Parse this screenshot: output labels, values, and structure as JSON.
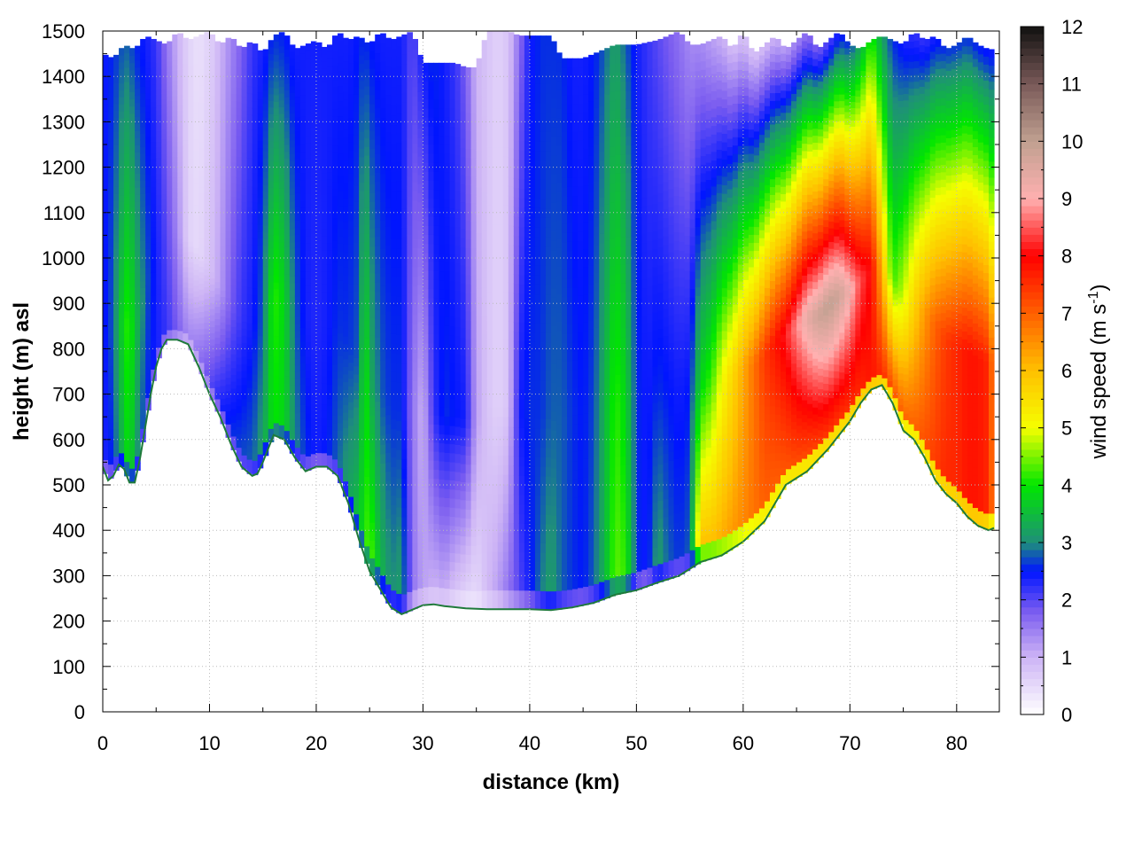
{
  "chart_data": {
    "type": "heatmap",
    "title": "",
    "xlabel": "distance (km)",
    "ylabel": "height (m) asl",
    "colorbar_label": "wind speed (m s",
    "colorbar_label_sup": "-1",
    "colorbar_label_end": ")",
    "xlim": [
      0,
      84
    ],
    "ylim": [
      0,
      1500
    ],
    "zlim": [
      0,
      12
    ],
    "x_ticks": [
      0,
      10,
      20,
      30,
      40,
      50,
      60,
      70,
      80
    ],
    "y_ticks": [
      0,
      100,
      200,
      300,
      400,
      500,
      600,
      700,
      800,
      900,
      1000,
      1100,
      1200,
      1300,
      1400,
      1500
    ],
    "z_ticks": [
      0,
      1,
      2,
      3,
      4,
      5,
      6,
      7,
      8,
      9,
      10,
      11,
      12
    ],
    "grid": true,
    "colormap": [
      {
        "value": 0,
        "color": "#ffffff"
      },
      {
        "value": 1,
        "color": "#cdb4f5"
      },
      {
        "value": 1.8,
        "color": "#7a5cf0"
      },
      {
        "value": 2.5,
        "color": "#0015ff"
      },
      {
        "value": 3,
        "color": "#1f8f7a"
      },
      {
        "value": 4,
        "color": "#00e600"
      },
      {
        "value": 5,
        "color": "#f5ff00"
      },
      {
        "value": 6,
        "color": "#ffc000"
      },
      {
        "value": 7,
        "color": "#ff6000"
      },
      {
        "value": 8,
        "color": "#ff0000"
      },
      {
        "value": 9,
        "color": "#ffb0b0"
      },
      {
        "value": 10,
        "color": "#c0a090"
      },
      {
        "value": 11,
        "color": "#7a5a58"
      },
      {
        "value": 12,
        "color": "#111111"
      }
    ],
    "terrain": {
      "distance_km": [
        0,
        0.5,
        1,
        1.5,
        2,
        2.5,
        3,
        3.5,
        4,
        4.5,
        5,
        5.5,
        6,
        6.5,
        7,
        8,
        9,
        10,
        11,
        12,
        13,
        14,
        14.5,
        15,
        16,
        17,
        18,
        19,
        20,
        21,
        22,
        23,
        24,
        25,
        26,
        27,
        28,
        29,
        30,
        31,
        32,
        34,
        36,
        38,
        40,
        42,
        44,
        46,
        48,
        50,
        52,
        54,
        56,
        58,
        60,
        62,
        64,
        66,
        68,
        70,
        71,
        72,
        73,
        74,
        75,
        76,
        77,
        78,
        79,
        80,
        81,
        82,
        83,
        83.5
      ],
      "height_m": [
        540,
        510,
        520,
        545,
        535,
        505,
        505,
        560,
        630,
        700,
        760,
        800,
        820,
        820,
        820,
        810,
        760,
        700,
        650,
        590,
        540,
        520,
        525,
        550,
        610,
        600,
        560,
        530,
        540,
        540,
        520,
        460,
        380,
        310,
        270,
        230,
        215,
        225,
        235,
        237,
        233,
        228,
        226,
        226,
        226,
        224,
        230,
        240,
        258,
        268,
        285,
        300,
        330,
        345,
        375,
        420,
        500,
        530,
        580,
        640,
        680,
        710,
        720,
        680,
        620,
        600,
        560,
        510,
        480,
        460,
        430,
        410,
        400,
        405
      ]
    },
    "top_boundary": {
      "distance_km": [
        0,
        1,
        2,
        3,
        4,
        5,
        6,
        7,
        8,
        9,
        10,
        11,
        12,
        13,
        14,
        15,
        16,
        17,
        18,
        19,
        20,
        21,
        22,
        23,
        24,
        25,
        26,
        27,
        28,
        29,
        30,
        31,
        32,
        33,
        34,
        35,
        36,
        37,
        38,
        39,
        40,
        41,
        42,
        43,
        44,
        45,
        46,
        47,
        48,
        49,
        50,
        51,
        52,
        53,
        54,
        55,
        56,
        57,
        58,
        59,
        60,
        61,
        62,
        63,
        64,
        65,
        66,
        67,
        68,
        69,
        70,
        71,
        72,
        73,
        74,
        75,
        76,
        77,
        78,
        79,
        80,
        81,
        82,
        83,
        83.5
      ],
      "height_m": [
        1450,
        1440,
        1470,
        1460,
        1490,
        1480,
        1470,
        1500,
        1480,
        1490,
        1500,
        1470,
        1490,
        1460,
        1480,
        1450,
        1490,
        1500,
        1460,
        1470,
        1480,
        1460,
        1500,
        1480,
        1490,
        1470,
        1500,
        1480,
        1490,
        1500,
        1430,
        1430,
        1430,
        1430,
        1420,
        1420,
        1500,
        1500,
        1500,
        1490,
        1490,
        1490,
        1490,
        1440,
        1440,
        1440,
        1450,
        1460,
        1470,
        1470,
        1470,
        1475,
        1480,
        1490,
        1500,
        1470,
        1470,
        1480,
        1490,
        1460,
        1500,
        1450,
        1470,
        1490,
        1460,
        1480,
        1500,
        1460,
        1480,
        1500,
        1470,
        1460,
        1480,
        1490,
        1480,
        1470,
        1500,
        1480,
        1490,
        1460,
        1470,
        1490,
        1470,
        1460,
        1460
      ]
    },
    "field_columns": {
      "note": "",
      "distance_km": [
        0,
        1,
        2,
        2.5,
        3,
        4,
        5,
        6,
        7,
        8,
        9,
        10,
        11,
        12,
        13,
        14,
        15,
        16,
        17,
        18,
        19,
        20,
        21,
        22,
        23,
        24,
        24.5,
        25,
        26,
        27,
        28,
        29,
        30,
        31,
        32,
        33,
        34,
        35,
        36,
        37,
        38,
        39,
        40,
        41,
        42,
        43,
        44,
        45,
        46,
        47,
        48,
        49,
        50,
        51,
        52,
        53,
        54,
        55,
        56,
        57,
        58,
        59,
        60,
        61,
        62,
        63,
        64,
        65,
        66,
        67,
        68,
        69,
        70,
        71,
        72,
        73,
        74,
        75,
        76,
        77,
        78,
        79,
        80,
        81,
        82,
        83,
        83.5
      ],
      "near_ground_speed": [
        2.3,
        2.6,
        3.6,
        4.0,
        3.2,
        2.6,
        2.4,
        2.2,
        1.8,
        1.4,
        1.6,
        2.0,
        2.4,
        2.6,
        2.7,
        2.8,
        3.2,
        4.0,
        3.8,
        3.0,
        2.6,
        2.4,
        2.5,
        2.8,
        3.2,
        3.6,
        4.0,
        4.5,
        3.5,
        3.0,
        3.2,
        1.6,
        1.2,
        1.0,
        1.1,
        0.8,
        0.6,
        0.5,
        0.9,
        1.2,
        1.6,
        2.0,
        2.4,
        2.9,
        3.2,
        2.8,
        2.6,
        2.5,
        2.8,
        3.4,
        4.4,
        4.2,
        2.6,
        2.4,
        3.2,
        2.8,
        2.6,
        2.8,
        6.0,
        6.0,
        6.2,
        6.4,
        6.6,
        6.8,
        7.0,
        7.0,
        7.1,
        7.2,
        7.2,
        7.3,
        7.4,
        7.4,
        7.5,
        7.6,
        7.8,
        7.6,
        7.2,
        7.0,
        7.0,
        7.2,
        7.4,
        7.6,
        7.6,
        7.8,
        7.8,
        7.6,
        6.5
      ],
      "core_speed": [
        2.4,
        2.8,
        4.0,
        4.2,
        3.6,
        2.8,
        2.4,
        2.0,
        1.4,
        0.6,
        0.5,
        0.8,
        1.2,
        1.8,
        2.2,
        2.4,
        2.8,
        4.2,
        3.8,
        2.8,
        2.4,
        2.3,
        2.4,
        2.6,
        2.6,
        2.8,
        4.2,
        3.4,
        2.8,
        2.6,
        2.6,
        1.6,
        1.0,
        2.2,
        2.6,
        2.5,
        2.4,
        1.2,
        0.8,
        0.6,
        0.8,
        2.4,
        2.6,
        2.6,
        2.8,
        2.8,
        2.6,
        2.5,
        2.7,
        3.4,
        4.2,
        3.8,
        2.6,
        2.4,
        2.6,
        2.5,
        2.4,
        2.5,
        3.8,
        4.2,
        5.0,
        5.6,
        6.2,
        6.8,
        7.4,
        7.8,
        8.2,
        8.8,
        9.4,
        9.8,
        10.0,
        9.8,
        9.2,
        8.4,
        8.0,
        6.0,
        4.2,
        4.8,
        5.6,
        6.4,
        7.0,
        7.4,
        7.6,
        7.8,
        7.8,
        7.6,
        6.4
      ],
      "upper_speed": [
        2.4,
        2.6,
        2.8,
        2.8,
        2.6,
        2.4,
        2.2,
        1.6,
        1.0,
        0.6,
        0.4,
        0.6,
        1.0,
        1.4,
        1.8,
        2.2,
        2.4,
        2.6,
        2.5,
        2.4,
        2.4,
        2.4,
        2.4,
        2.4,
        2.4,
        2.5,
        2.6,
        2.5,
        2.4,
        2.4,
        2.4,
        2.0,
        2.4,
        2.6,
        2.4,
        2.2,
        1.8,
        1.0,
        0.8,
        0.6,
        0.8,
        1.6,
        2.4,
        2.6,
        2.6,
        2.6,
        2.4,
        2.4,
        2.5,
        2.8,
        3.2,
        2.8,
        2.4,
        2.2,
        2.0,
        1.8,
        1.6,
        1.4,
        1.4,
        1.2,
        1.0,
        0.9,
        0.8,
        0.8,
        0.9,
        1.0,
        1.2,
        1.4,
        1.6,
        1.8,
        2.0,
        2.4,
        2.6,
        3.4,
        4.2,
        3.2,
        2.6,
        2.4,
        2.2,
        2.2,
        2.4,
        2.6,
        2.6,
        2.6,
        2.5,
        2.4,
        2.4
      ]
    }
  }
}
